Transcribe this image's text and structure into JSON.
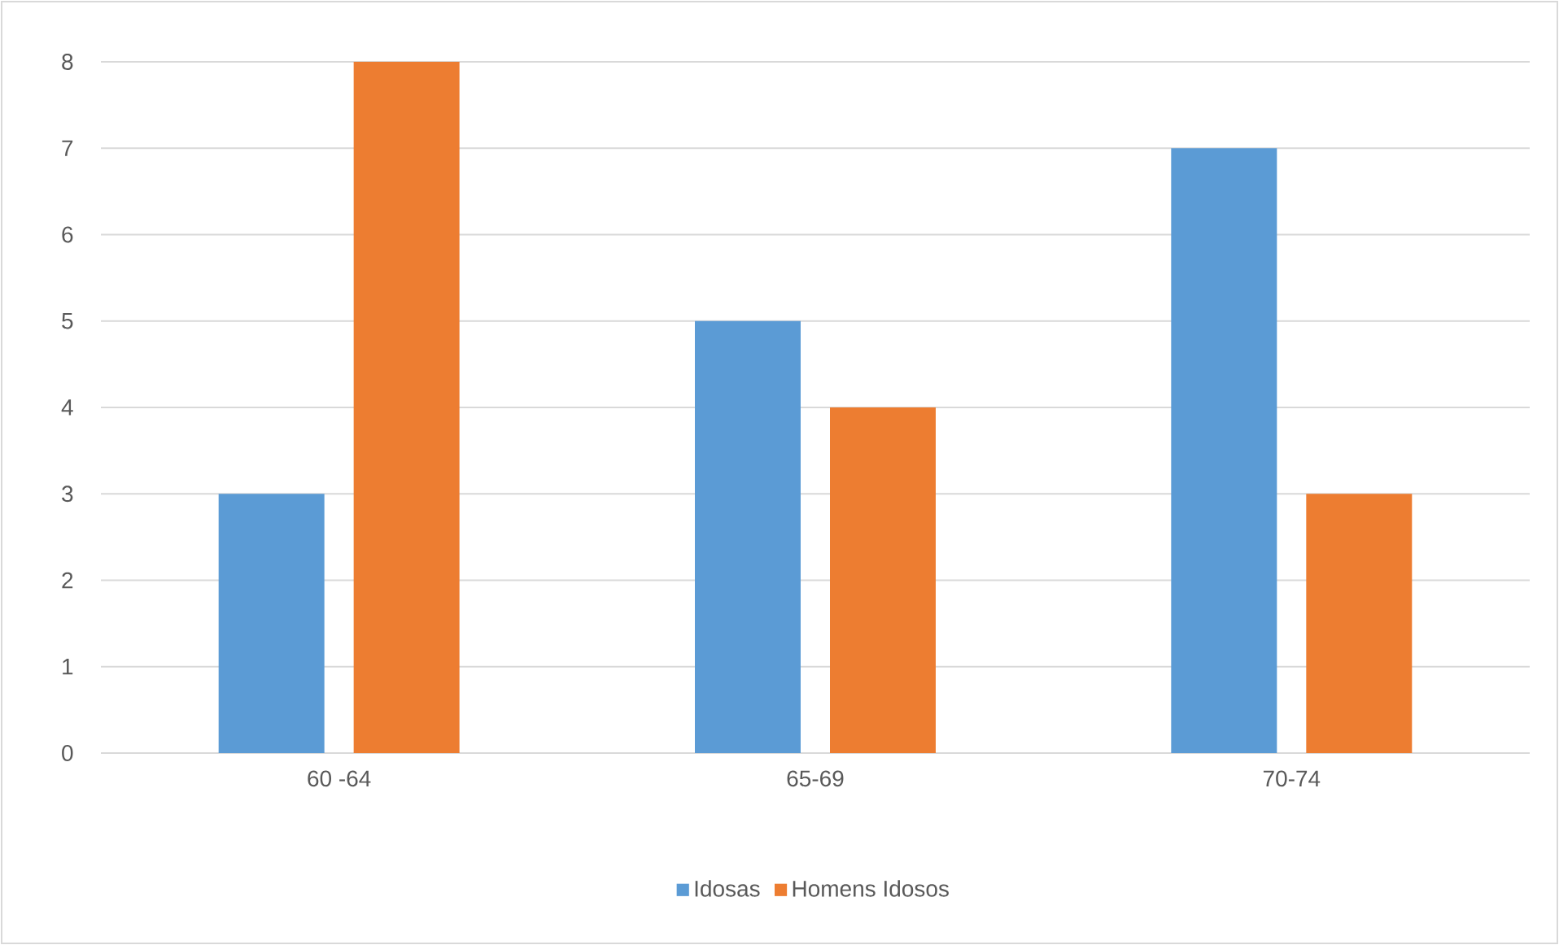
{
  "chart_data": {
    "type": "bar",
    "categories": [
      "60 -64",
      "65-69",
      "70-74"
    ],
    "series": [
      {
        "name": "Idosas",
        "color": "#5b9bd5",
        "values": [
          3,
          5,
          7
        ]
      },
      {
        "name": "Homens Idosos",
        "color": "#ed7d31",
        "values": [
          8,
          4,
          3
        ]
      }
    ],
    "ylim": [
      0,
      8
    ],
    "yticks": [
      0,
      1,
      2,
      3,
      4,
      5,
      6,
      7,
      8
    ],
    "grid": "y",
    "legend": "bottom"
  }
}
